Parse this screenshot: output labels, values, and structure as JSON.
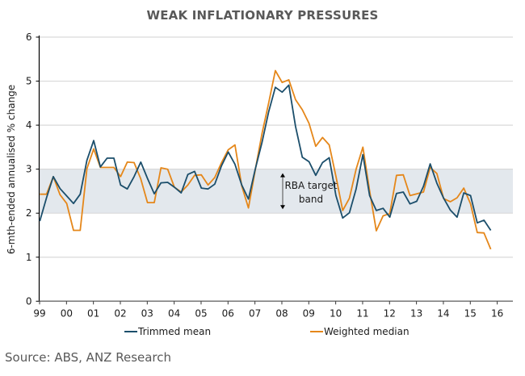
{
  "chart_data": {
    "type": "line",
    "title": "WEAK INFLATIONARY PRESSURES",
    "xlabel": "",
    "ylabel": "6-mth-ended annualised % change",
    "ylim": [
      0,
      6
    ],
    "yticks": [
      "0",
      "1",
      "2",
      "3",
      "4",
      "5",
      "6"
    ],
    "xticks": [
      "99",
      "00",
      "01",
      "02",
      "03",
      "04",
      "05",
      "06",
      "07",
      "08",
      "09",
      "10",
      "11",
      "12",
      "13",
      "14",
      "15",
      "16"
    ],
    "x_frequency": "quarterly",
    "x_start": "1999 Q1",
    "x_end": "2015 Q4",
    "grid": true,
    "legend_position": "bottom",
    "shaded_band": {
      "label_line1": "RBA target",
      "label_line2": "band",
      "from": 2,
      "to": 3,
      "color": "#e3e8ed"
    },
    "series": [
      {
        "name": "Trimmed mean",
        "color": "#1b4e6b",
        "values": [
          1.82,
          2.35,
          2.83,
          2.56,
          2.39,
          2.22,
          2.43,
          3.2,
          3.65,
          3.05,
          3.25,
          3.25,
          2.64,
          2.55,
          2.83,
          3.16,
          2.79,
          2.44,
          2.69,
          2.7,
          2.59,
          2.46,
          2.88,
          2.95,
          2.57,
          2.55,
          2.66,
          3.08,
          3.39,
          3.11,
          2.64,
          2.32,
          2.99,
          3.6,
          4.3,
          4.86,
          4.75,
          4.91,
          3.97,
          3.27,
          3.17,
          2.86,
          3.15,
          3.26,
          2.4,
          1.89,
          2.01,
          2.55,
          3.33,
          2.4,
          2.06,
          2.11,
          1.91,
          2.45,
          2.48,
          2.21,
          2.27,
          2.61,
          3.12,
          2.68,
          2.34,
          2.07,
          1.91,
          2.46,
          2.4,
          1.78,
          1.84,
          1.61
        ]
      },
      {
        "name": "Weighted median",
        "color": "#e5871a",
        "values": [
          2.43,
          2.43,
          2.83,
          2.42,
          2.22,
          1.61,
          1.61,
          3.01,
          3.46,
          3.04,
          3.04,
          3.04,
          2.83,
          3.16,
          3.15,
          2.78,
          2.24,
          2.24,
          3.03,
          3.0,
          2.59,
          2.48,
          2.64,
          2.86,
          2.87,
          2.64,
          2.81,
          3.15,
          3.44,
          3.55,
          2.62,
          2.12,
          2.97,
          3.8,
          4.5,
          5.24,
          4.97,
          5.03,
          4.58,
          4.35,
          4.04,
          3.52,
          3.72,
          3.55,
          2.84,
          2.06,
          2.34,
          3.0,
          3.5,
          2.51,
          1.6,
          1.94,
          1.99,
          2.86,
          2.87,
          2.4,
          2.44,
          2.48,
          3.04,
          2.9,
          2.33,
          2.26,
          2.35,
          2.57,
          2.21,
          1.56,
          1.55,
          1.18
        ]
      }
    ]
  },
  "source_note": "Source: ABS, ANZ Research"
}
